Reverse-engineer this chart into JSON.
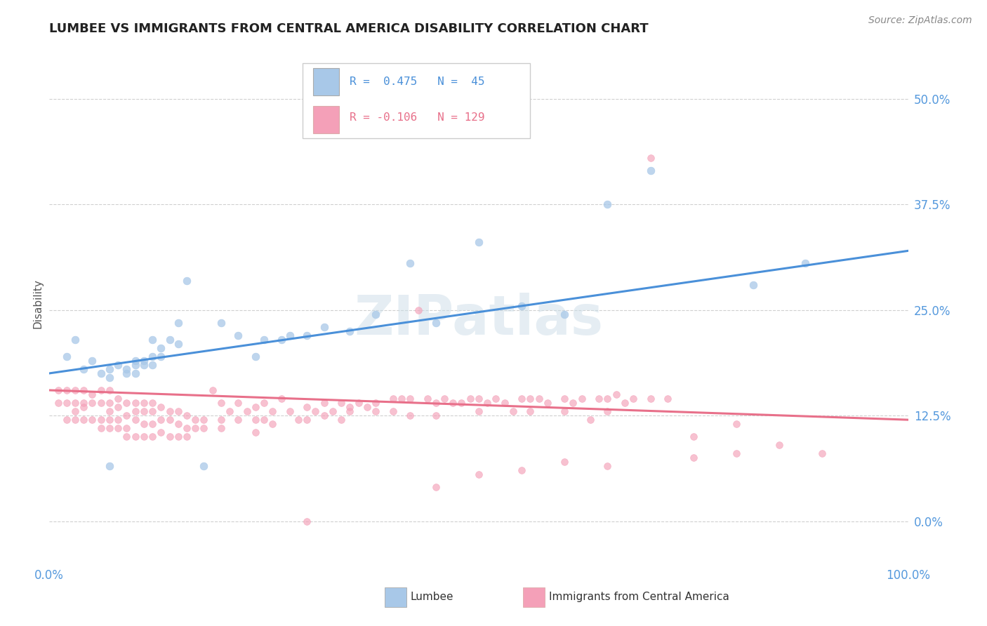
{
  "title": "LUMBEE VS IMMIGRANTS FROM CENTRAL AMERICA DISABILITY CORRELATION CHART",
  "source": "Source: ZipAtlas.com",
  "ylabel": "Disability",
  "xlim": [
    0.0,
    1.0
  ],
  "ylim": [
    -0.05,
    0.565
  ],
  "yticks": [
    0.0,
    0.125,
    0.25,
    0.375,
    0.5
  ],
  "ytick_labels": [
    "0.0%",
    "12.5%",
    "25.0%",
    "37.5%",
    "50.0%"
  ],
  "xticks": [
    0.0,
    1.0
  ],
  "xtick_labels": [
    "0.0%",
    "100.0%"
  ],
  "blue_color": "#A8C8E8",
  "pink_color": "#F4A0B8",
  "blue_line_color": "#4A90D9",
  "pink_line_color": "#E8708A",
  "tick_color": "#5599DD",
  "watermark": "ZIPatlas",
  "lumbee_legend": "Lumbee",
  "immigrant_legend": "Immigrants from Central America",
  "blue_scatter": [
    [
      0.02,
      0.195
    ],
    [
      0.03,
      0.215
    ],
    [
      0.04,
      0.18
    ],
    [
      0.05,
      0.19
    ],
    [
      0.06,
      0.175
    ],
    [
      0.07,
      0.17
    ],
    [
      0.07,
      0.18
    ],
    [
      0.08,
      0.185
    ],
    [
      0.09,
      0.175
    ],
    [
      0.09,
      0.18
    ],
    [
      0.1,
      0.185
    ],
    [
      0.1,
      0.19
    ],
    [
      0.1,
      0.175
    ],
    [
      0.11,
      0.19
    ],
    [
      0.11,
      0.185
    ],
    [
      0.12,
      0.215
    ],
    [
      0.12,
      0.195
    ],
    [
      0.12,
      0.185
    ],
    [
      0.13,
      0.195
    ],
    [
      0.13,
      0.205
    ],
    [
      0.14,
      0.215
    ],
    [
      0.15,
      0.21
    ],
    [
      0.15,
      0.235
    ],
    [
      0.16,
      0.285
    ],
    [
      0.2,
      0.235
    ],
    [
      0.22,
      0.22
    ],
    [
      0.24,
      0.195
    ],
    [
      0.25,
      0.215
    ],
    [
      0.27,
      0.215
    ],
    [
      0.28,
      0.22
    ],
    [
      0.3,
      0.22
    ],
    [
      0.32,
      0.23
    ],
    [
      0.35,
      0.225
    ],
    [
      0.38,
      0.245
    ],
    [
      0.42,
      0.305
    ],
    [
      0.45,
      0.235
    ],
    [
      0.5,
      0.33
    ],
    [
      0.55,
      0.255
    ],
    [
      0.6,
      0.245
    ],
    [
      0.65,
      0.375
    ],
    [
      0.7,
      0.415
    ],
    [
      0.82,
      0.28
    ],
    [
      0.88,
      0.305
    ],
    [
      0.07,
      0.065
    ],
    [
      0.18,
      0.065
    ]
  ],
  "pink_scatter": [
    [
      0.01,
      0.155
    ],
    [
      0.01,
      0.14
    ],
    [
      0.02,
      0.155
    ],
    [
      0.02,
      0.14
    ],
    [
      0.02,
      0.12
    ],
    [
      0.03,
      0.155
    ],
    [
      0.03,
      0.14
    ],
    [
      0.03,
      0.13
    ],
    [
      0.03,
      0.12
    ],
    [
      0.04,
      0.155
    ],
    [
      0.04,
      0.14
    ],
    [
      0.04,
      0.135
    ],
    [
      0.04,
      0.12
    ],
    [
      0.05,
      0.15
    ],
    [
      0.05,
      0.14
    ],
    [
      0.05,
      0.12
    ],
    [
      0.06,
      0.155
    ],
    [
      0.06,
      0.14
    ],
    [
      0.06,
      0.12
    ],
    [
      0.06,
      0.11
    ],
    [
      0.07,
      0.155
    ],
    [
      0.07,
      0.14
    ],
    [
      0.07,
      0.13
    ],
    [
      0.07,
      0.12
    ],
    [
      0.07,
      0.11
    ],
    [
      0.08,
      0.145
    ],
    [
      0.08,
      0.135
    ],
    [
      0.08,
      0.12
    ],
    [
      0.08,
      0.11
    ],
    [
      0.09,
      0.14
    ],
    [
      0.09,
      0.125
    ],
    [
      0.09,
      0.11
    ],
    [
      0.09,
      0.1
    ],
    [
      0.1,
      0.14
    ],
    [
      0.1,
      0.13
    ],
    [
      0.1,
      0.12
    ],
    [
      0.1,
      0.1
    ],
    [
      0.11,
      0.14
    ],
    [
      0.11,
      0.13
    ],
    [
      0.11,
      0.115
    ],
    [
      0.11,
      0.1
    ],
    [
      0.12,
      0.14
    ],
    [
      0.12,
      0.13
    ],
    [
      0.12,
      0.115
    ],
    [
      0.12,
      0.1
    ],
    [
      0.13,
      0.135
    ],
    [
      0.13,
      0.12
    ],
    [
      0.13,
      0.105
    ],
    [
      0.14,
      0.13
    ],
    [
      0.14,
      0.12
    ],
    [
      0.14,
      0.1
    ],
    [
      0.15,
      0.13
    ],
    [
      0.15,
      0.115
    ],
    [
      0.15,
      0.1
    ],
    [
      0.16,
      0.125
    ],
    [
      0.16,
      0.11
    ],
    [
      0.16,
      0.1
    ],
    [
      0.17,
      0.12
    ],
    [
      0.17,
      0.11
    ],
    [
      0.18,
      0.12
    ],
    [
      0.18,
      0.11
    ],
    [
      0.19,
      0.155
    ],
    [
      0.2,
      0.14
    ],
    [
      0.2,
      0.12
    ],
    [
      0.2,
      0.11
    ],
    [
      0.21,
      0.13
    ],
    [
      0.22,
      0.14
    ],
    [
      0.22,
      0.12
    ],
    [
      0.23,
      0.13
    ],
    [
      0.24,
      0.135
    ],
    [
      0.24,
      0.12
    ],
    [
      0.24,
      0.105
    ],
    [
      0.25,
      0.14
    ],
    [
      0.25,
      0.12
    ],
    [
      0.26,
      0.13
    ],
    [
      0.26,
      0.115
    ],
    [
      0.27,
      0.145
    ],
    [
      0.28,
      0.13
    ],
    [
      0.29,
      0.12
    ],
    [
      0.3,
      0.135
    ],
    [
      0.3,
      0.12
    ],
    [
      0.31,
      0.13
    ],
    [
      0.32,
      0.14
    ],
    [
      0.32,
      0.125
    ],
    [
      0.33,
      0.13
    ],
    [
      0.34,
      0.14
    ],
    [
      0.34,
      0.12
    ],
    [
      0.35,
      0.135
    ],
    [
      0.36,
      0.14
    ],
    [
      0.37,
      0.135
    ],
    [
      0.38,
      0.14
    ],
    [
      0.38,
      0.13
    ],
    [
      0.4,
      0.145
    ],
    [
      0.4,
      0.13
    ],
    [
      0.41,
      0.145
    ],
    [
      0.42,
      0.145
    ],
    [
      0.42,
      0.125
    ],
    [
      0.43,
      0.25
    ],
    [
      0.44,
      0.145
    ],
    [
      0.45,
      0.14
    ],
    [
      0.45,
      0.125
    ],
    [
      0.46,
      0.145
    ],
    [
      0.47,
      0.14
    ],
    [
      0.48,
      0.14
    ],
    [
      0.49,
      0.145
    ],
    [
      0.5,
      0.145
    ],
    [
      0.5,
      0.13
    ],
    [
      0.51,
      0.14
    ],
    [
      0.52,
      0.145
    ],
    [
      0.53,
      0.14
    ],
    [
      0.54,
      0.13
    ],
    [
      0.55,
      0.145
    ],
    [
      0.56,
      0.145
    ],
    [
      0.56,
      0.13
    ],
    [
      0.57,
      0.145
    ],
    [
      0.58,
      0.14
    ],
    [
      0.6,
      0.145
    ],
    [
      0.6,
      0.13
    ],
    [
      0.61,
      0.14
    ],
    [
      0.62,
      0.145
    ],
    [
      0.63,
      0.12
    ],
    [
      0.64,
      0.145
    ],
    [
      0.65,
      0.145
    ],
    [
      0.65,
      0.13
    ],
    [
      0.66,
      0.15
    ],
    [
      0.67,
      0.14
    ],
    [
      0.68,
      0.145
    ],
    [
      0.7,
      0.145
    ],
    [
      0.72,
      0.145
    ],
    [
      0.75,
      0.1
    ],
    [
      0.8,
      0.115
    ],
    [
      0.85,
      0.09
    ],
    [
      0.7,
      0.43
    ],
    [
      0.3,
      0.0
    ],
    [
      0.45,
      0.04
    ],
    [
      0.55,
      0.06
    ],
    [
      0.6,
      0.07
    ],
    [
      0.75,
      0.075
    ],
    [
      0.35,
      0.13
    ],
    [
      0.5,
      0.055
    ],
    [
      0.65,
      0.065
    ],
    [
      0.8,
      0.08
    ],
    [
      0.9,
      0.08
    ]
  ],
  "blue_line": [
    [
      0.0,
      0.175
    ],
    [
      1.0,
      0.32
    ]
  ],
  "pink_line": [
    [
      0.0,
      0.155
    ],
    [
      1.0,
      0.12
    ]
  ]
}
